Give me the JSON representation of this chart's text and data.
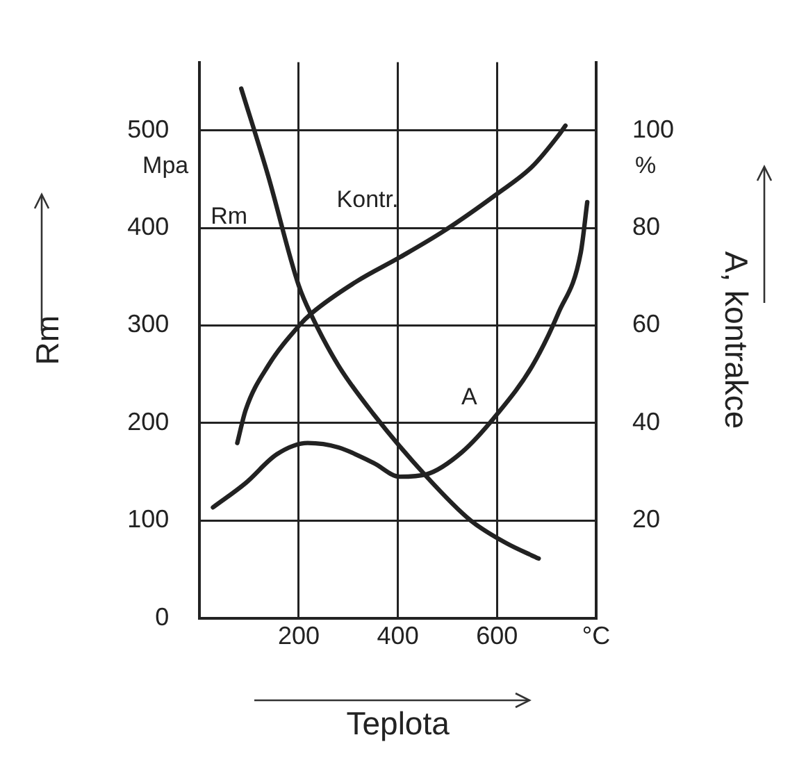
{
  "chart_data": {
    "type": "line",
    "xlabel": "Teplota",
    "ylabel": "Rm",
    "y2label": "A, kontrakce",
    "annotations": [
      "Mpa",
      "%"
    ],
    "xlim": [
      0,
      800
    ],
    "xticks": [
      200,
      400,
      600,
      {
        "value": 800,
        "label": "°C"
      }
    ],
    "ylim": [
      0,
      570
    ],
    "yticks": [
      0,
      100,
      200,
      300,
      400,
      500
    ],
    "y2lim": [
      0,
      114
    ],
    "y2ticks": [
      20,
      40,
      60,
      80,
      100
    ],
    "grid": true,
    "legend": false,
    "marker": "none",
    "line_style": "solid",
    "series": [
      {
        "name": "Rm",
        "color": "#222222",
        "x": [
          84,
          138,
          200,
          227,
          280,
          351,
          458,
          547,
          618,
          684
        ],
        "values": [
          543,
          454,
          341,
          309,
          259,
          209,
          145,
          100,
          77,
          61
        ]
      },
      {
        "name": "Kontr.",
        "color": "#222222",
        "axis": "y2",
        "x": [
          76,
          93,
          138,
          200,
          227,
          316,
          404,
          493,
          600,
          671,
          724,
          738
        ],
        "values": [
          35.9,
          42.7,
          51.7,
          59.9,
          62.6,
          69,
          74,
          79.4,
          87,
          92.6,
          99,
          101
        ]
      },
      {
        "name": "A",
        "color": "#222222",
        "axis": "y2",
        "x": [
          27,
          93,
          156,
          218,
          280,
          351,
          404,
          458,
          529,
          600,
          671,
          724,
          769,
          782
        ],
        "values": [
          22.7,
          27.7,
          33.6,
          35.9,
          35,
          31.8,
          29,
          29.5,
          34,
          41.8,
          51.7,
          62.6,
          75,
          85.3
        ]
      }
    ]
  }
}
